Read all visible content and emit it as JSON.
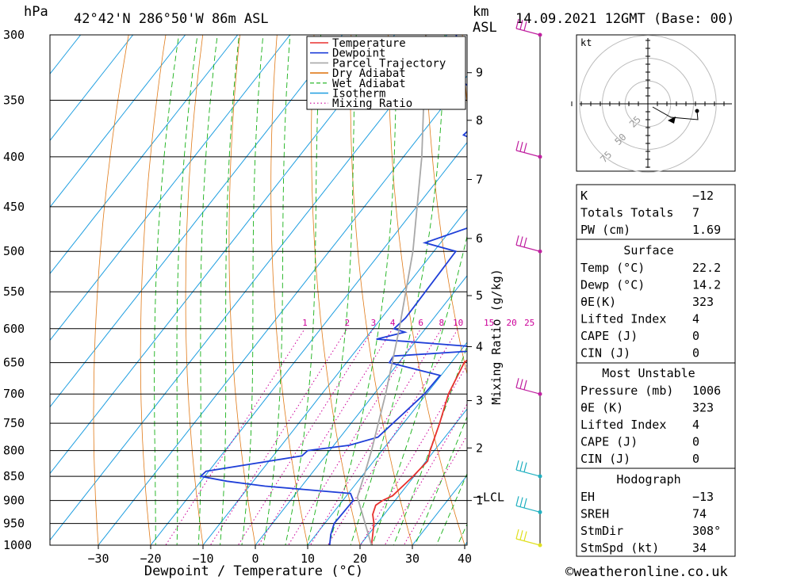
{
  "header": {
    "hpa_unit": "hPa",
    "location": "42°42'N  286°50'W  86m  ASL",
    "km_label": "km",
    "asl_label": "ASL",
    "datetime": "14.09.2021  12GMT  (Base: 00)"
  },
  "axes": {
    "xlabel": "Dewpoint / Temperature (°C)",
    "mixing_ratio_label": "Mixing Ratio (g/kg)",
    "lcl_label": "LCL"
  },
  "legend": {
    "position": "top-right of plot",
    "items": [
      {
        "label": "Temperature",
        "color": "#e8302e",
        "style": "solid"
      },
      {
        "label": "Dewpoint",
        "color": "#1f3fd8",
        "style": "solid"
      },
      {
        "label": "Parcel Trajectory",
        "color": "#a8a8a8",
        "style": "solid"
      },
      {
        "label": "Dry Adiabat",
        "color": "#e07a18",
        "style": "solid"
      },
      {
        "label": "Wet Adiabat",
        "color": "#16b016",
        "style": "dashed"
      },
      {
        "label": "Isotherm",
        "color": "#1e9ee0",
        "style": "solid"
      },
      {
        "label": "Mixing Ratio",
        "color": "#cc0099",
        "style": "dotted"
      }
    ]
  },
  "chart_data": {
    "type": "line",
    "subtype": "skew-T log-P sounding",
    "pressure_levels": [
      300,
      350,
      400,
      450,
      500,
      550,
      600,
      650,
      700,
      750,
      800,
      850,
      900,
      950,
      1000
    ],
    "temperature_ticks": [
      -30,
      -20,
      -10,
      0,
      10,
      20,
      30,
      40
    ],
    "xlim": [
      -40,
      40
    ],
    "plim": [
      1000,
      300
    ],
    "height_ticks_km": [
      {
        "label": "9",
        "p": 328
      },
      {
        "label": "8",
        "p": 367
      },
      {
        "label": "7",
        "p": 422
      },
      {
        "label": "6",
        "p": 485
      },
      {
        "label": "5",
        "p": 555
      },
      {
        "label": "4",
        "p": 626
      },
      {
        "label": "3",
        "p": 711
      },
      {
        "label": "2",
        "p": 795
      },
      {
        "label": "1",
        "p": 900
      }
    ],
    "lcl_pressure": 893,
    "mixing_ratio_labels": [
      "1",
      "2",
      "3",
      "4",
      "6",
      "8",
      "10",
      "15",
      "20",
      "25"
    ],
    "series": [
      {
        "name": "Temperature",
        "color": "#e8302e",
        "points": [
          [
            1000,
            22.2
          ],
          [
            950,
            19.4
          ],
          [
            930,
            17.8
          ],
          [
            910,
            17.0
          ],
          [
            900,
            17.6
          ],
          [
            890,
            18.8
          ],
          [
            850,
            19.8
          ],
          [
            820,
            20.3
          ],
          [
            800,
            19.2
          ],
          [
            750,
            16.9
          ],
          [
            700,
            14.2
          ],
          [
            650,
            12.5
          ],
          [
            630,
            13.6
          ],
          [
            600,
            11.7
          ],
          [
            550,
            7.6
          ],
          [
            500,
            2.2
          ],
          [
            490,
            3.0
          ],
          [
            450,
            1.8
          ],
          [
            400,
            -5.2
          ],
          [
            380,
            -6.6
          ],
          [
            360,
            -10.2
          ],
          [
            350,
            -11.1
          ],
          [
            330,
            -14.0
          ],
          [
            300,
            -21.8
          ]
        ]
      },
      {
        "name": "Dewpoint",
        "color": "#1f3fd8",
        "points": [
          [
            1000,
            14.2
          ],
          [
            975,
            12.8
          ],
          [
            950,
            11.8
          ],
          [
            900,
            12.0
          ],
          [
            885,
            10.4
          ],
          [
            870,
            -7.0
          ],
          [
            860,
            -15.0
          ],
          [
            850,
            -20.8
          ],
          [
            840,
            -20.5
          ],
          [
            810,
            -4.5
          ],
          [
            800,
            -4.2
          ],
          [
            790,
            3.0
          ],
          [
            775,
            7.2
          ],
          [
            700,
            9.6
          ],
          [
            670,
            9.8
          ],
          [
            650,
            -1.8
          ],
          [
            640,
            -2.0
          ],
          [
            630,
            17.0
          ],
          [
            625,
            10.0
          ],
          [
            615,
            -7.8
          ],
          [
            605,
            -3.4
          ],
          [
            600,
            -6.0
          ],
          [
            585,
            -5.4
          ],
          [
            500,
            -5.8
          ],
          [
            490,
            -13.0
          ],
          [
            470,
            -5.9
          ],
          [
            400,
            -9.0
          ],
          [
            380,
            -21.8
          ],
          [
            355,
            -20.3
          ],
          [
            345,
            -25.0
          ],
          [
            330,
            -32.6
          ],
          [
            300,
            -38.2
          ]
        ]
      },
      {
        "name": "Parcel Trajectory",
        "color": "#a8a8a8",
        "points": [
          [
            1000,
            22.2
          ],
          [
            893,
            12.3
          ],
          [
            850,
            10.4
          ],
          [
            800,
            8.0
          ],
          [
            700,
            2.2
          ],
          [
            600,
            -5.0
          ],
          [
            500,
            -14.0
          ],
          [
            400,
            -26.5
          ],
          [
            300,
            -44.0
          ]
        ]
      }
    ],
    "wind_barbs": [
      {
        "p": 300,
        "color": "#c020a0"
      },
      {
        "p": 400,
        "color": "#c020a0"
      },
      {
        "p": 500,
        "color": "#c020a0"
      },
      {
        "p": 700,
        "color": "#c020a0"
      },
      {
        "p": 850,
        "color": "#20b0c0"
      },
      {
        "p": 925,
        "color": "#20b0c0"
      },
      {
        "p": 1000,
        "color": "#e0e020"
      }
    ],
    "hodograph": {
      "unit": "kt",
      "ring_labels": [
        "25",
        "50",
        "75"
      ]
    }
  },
  "indices": {
    "general": [
      {
        "name": "K",
        "value": "-12"
      },
      {
        "name": "Totals Totals",
        "value": "7"
      },
      {
        "name": "PW (cm)",
        "value": "1.69"
      }
    ],
    "surface_title": "Surface",
    "surface": [
      {
        "name": "Temp (°C)",
        "value": "22.2"
      },
      {
        "name": "Dewp (°C)",
        "value": "14.2"
      },
      {
        "name": "θE(K)",
        "value": "323"
      },
      {
        "name": "Lifted Index",
        "value": "4"
      },
      {
        "name": "CAPE (J)",
        "value": "0"
      },
      {
        "name": "CIN (J)",
        "value": "0"
      }
    ],
    "most_unstable_title": "Most Unstable",
    "most_unstable": [
      {
        "name": "Pressure (mb)",
        "value": "1006"
      },
      {
        "name": "θE (K)",
        "value": "323"
      },
      {
        "name": "Lifted Index",
        "value": "4"
      },
      {
        "name": "CAPE (J)",
        "value": "0"
      },
      {
        "name": "CIN (J)",
        "value": "0"
      }
    ],
    "hodograph_title": "Hodograph",
    "hodograph": [
      {
        "name": "EH",
        "value": "-13"
      },
      {
        "name": "SREH",
        "value": "74"
      },
      {
        "name": "StmDir",
        "value": "308°"
      },
      {
        "name": "StmSpd (kt)",
        "value": "34"
      }
    ]
  },
  "footer": {
    "copyright": "©weatheronline.co.uk"
  }
}
